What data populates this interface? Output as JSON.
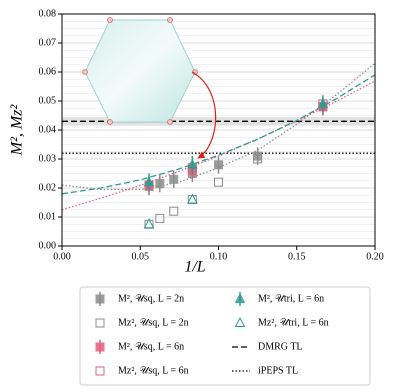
{
  "chart_data": {
    "type": "scatter",
    "xlabel": "1/L",
    "ylabel": "M², Mz²",
    "xlim": [
      0,
      0.2
    ],
    "ylim": [
      0,
      0.08
    ],
    "xticks": [
      {
        "value": 0,
        "label": "0.00"
      },
      {
        "value": 0.05,
        "label": "0.05"
      },
      {
        "value": 0.1,
        "label": "0.10"
      },
      {
        "value": 0.15,
        "label": "0.15"
      },
      {
        "value": 0.2,
        "label": "0.20"
      }
    ],
    "yticks": [
      {
        "value": 0,
        "label": "0.00"
      },
      {
        "value": 0.01,
        "label": "0.01"
      },
      {
        "value": 0.02,
        "label": "0.02"
      },
      {
        "value": 0.03,
        "label": "0.03"
      },
      {
        "value": 0.04,
        "label": "0.04"
      },
      {
        "value": 0.05,
        "label": "0.05"
      },
      {
        "value": 0.06,
        "label": "0.06"
      },
      {
        "value": 0.07,
        "label": "0.07"
      },
      {
        "value": 0.08,
        "label": "0.08"
      }
    ],
    "yminorticks": [
      0.0025,
      0.005,
      0.0075,
      0.0125,
      0.015,
      0.0175,
      0.0225,
      0.025,
      0.0275,
      0.0325,
      0.035,
      0.0375,
      0.0425,
      0.045,
      0.0475,
      0.0525,
      0.055,
      0.0575,
      0.0625,
      0.065,
      0.0675,
      0.0725,
      0.075,
      0.0775
    ],
    "grid": true,
    "series": [
      {
        "name": "M², 𝒰sq, L = 2n",
        "color": "#8c8c8c",
        "marker": "square",
        "filled": true,
        "x": [
          0.1667,
          0.125,
          0.1,
          0.0833,
          0.0714,
          0.0625,
          0.0556
        ],
        "values": [
          0.048,
          0.031,
          0.028,
          0.025,
          0.023,
          0.0215,
          0.0205
        ],
        "errors": [
          0.003,
          0.003,
          0.003,
          0.003,
          0.003,
          0.003,
          0.003
        ]
      },
      {
        "name": "Mz², 𝒰sq, L = 2n",
        "color": "#8c8c8c",
        "marker": "square",
        "filled": false,
        "x": [
          0.125,
          0.1,
          0.0833,
          0.0714,
          0.0625,
          0.0556
        ],
        "values": [
          0.03,
          0.022,
          0.016,
          0.012,
          0.0095,
          0.0075
        ]
      },
      {
        "name": "M², 𝒰sq, L = 6n",
        "color": "#e0607e",
        "marker": "square",
        "filled": true,
        "x": [
          0.1667,
          0.0833,
          0.0556
        ],
        "values": [
          0.048,
          0.026,
          0.021
        ],
        "errors": [
          0.003,
          0.003,
          0.003
        ]
      },
      {
        "name": "Mz², 𝒰sq, L = 6n",
        "color": "#e0607e",
        "marker": "square",
        "filled": false,
        "x": [
          0.1667,
          0.0833,
          0.0556
        ],
        "values": [
          0.049,
          0.027,
          0.021
        ]
      },
      {
        "name": "M², 𝒰tri, L = 6n",
        "color": "#2a9d8f",
        "marker": "triangle",
        "filled": true,
        "x": [
          0.1667,
          0.0833,
          0.0556
        ],
        "values": [
          0.049,
          0.028,
          0.022
        ],
        "errors": [
          0.003,
          0.003,
          0.003
        ]
      },
      {
        "name": "Mz², 𝒰tri, L = 6n",
        "color": "#2a9d8f",
        "marker": "triangle",
        "filled": false,
        "x": [
          0.0833,
          0.0556
        ],
        "values": [
          0.016,
          0.0075
        ]
      }
    ],
    "hlines": [
      {
        "name": "DMRG TL",
        "value": 0.043,
        "band": [
          0.0415,
          0.0445
        ],
        "style": "dashed",
        "color": "#000000"
      },
      {
        "name": "iPEPS TL",
        "value": 0.032,
        "style": "dotted",
        "color": "#000000"
      }
    ],
    "fits": [
      {
        "color": "#8c8c8c",
        "style": "dotted",
        "x": [
          0,
          0.025,
          0.05,
          0.075,
          0.1,
          0.125,
          0.15,
          0.175,
          0.2
        ],
        "values": [
          0.021,
          0.0195,
          0.0195,
          0.022,
          0.027,
          0.033,
          0.042,
          0.052,
          0.063
        ]
      },
      {
        "color": "#e0607e",
        "style": "dotted",
        "x": [
          0,
          0.025,
          0.05,
          0.075,
          0.1,
          0.125,
          0.15,
          0.175,
          0.2
        ],
        "values": [
          0.0125,
          0.0165,
          0.0209,
          0.0258,
          0.031,
          0.0369,
          0.0431,
          0.0498,
          0.0569
        ]
      },
      {
        "color": "#2a9d8f",
        "style": "dashed",
        "x": [
          0,
          0.025,
          0.05,
          0.075,
          0.1,
          0.125,
          0.15,
          0.175,
          0.2
        ],
        "values": [
          0.018,
          0.02,
          0.0228,
          0.0266,
          0.0313,
          0.0368,
          0.0433,
          0.0507,
          0.059
        ]
      }
    ]
  }
}
